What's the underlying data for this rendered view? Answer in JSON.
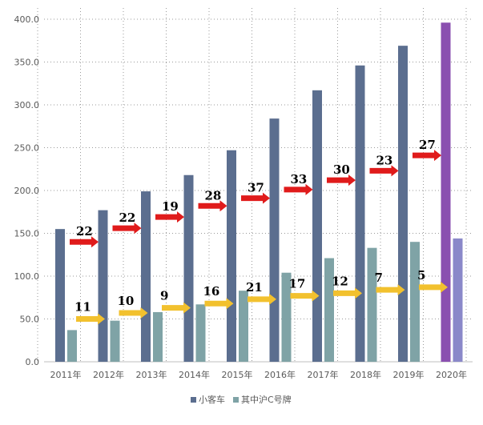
{
  "chart_data": {
    "type": "bar",
    "title": "",
    "xlabel": "",
    "ylabel": "",
    "categories": [
      "2011年",
      "2012年",
      "2013年",
      "2014年",
      "2015年",
      "2016年",
      "2017年",
      "2018年",
      "2019年",
      "2020年"
    ],
    "ylim": [
      0,
      400
    ],
    "yticks": [
      "0.0",
      "50.0",
      "100.0",
      "150.0",
      "200.0",
      "250.0",
      "300.0",
      "350.0",
      "400.0"
    ],
    "grid": "dotted",
    "legend_position": "bottom",
    "series": [
      {
        "name": "小客车",
        "values": [
          155,
          177,
          199,
          218,
          247,
          284,
          317,
          346,
          369,
          396
        ],
        "color": "#5B6E8F",
        "highlight_color": "#8A4FB0",
        "highlight_index": 9
      },
      {
        "name": "其中沪C号牌",
        "values": [
          37,
          48,
          58,
          67,
          83,
          104,
          121,
          133,
          140,
          144
        ],
        "color": "#7FA3A6",
        "highlight_color": "#8A88C9",
        "highlight_index": 9
      }
    ],
    "annotations": {
      "red_arrows": {
        "color": "#E01B1B",
        "values": [
          140,
          156,
          169,
          182,
          191,
          201,
          212,
          223,
          241,
          241
        ],
        "labels": [
          "22",
          "22",
          "19",
          "28",
          "37",
          "33",
          "30",
          "23",
          "27",
          ""
        ]
      },
      "yellow_arrows": {
        "color": "#F2C12E",
        "values": [
          50,
          57,
          63,
          68,
          73,
          77,
          80,
          84,
          87,
          87
        ],
        "labels": [
          "11",
          "10",
          "9",
          "16",
          "21",
          "17",
          "12",
          "7",
          "5",
          ""
        ]
      }
    }
  }
}
